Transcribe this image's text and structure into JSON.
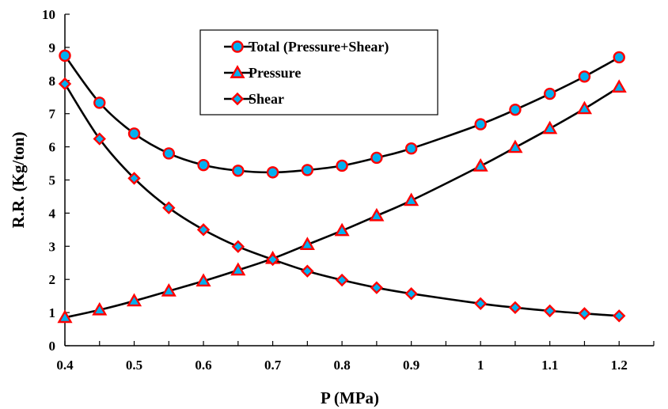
{
  "colors": {
    "line": "#000000",
    "marker_fill": "#00B0F0",
    "marker_edge": "#FF0000",
    "axis": "#000000",
    "background": "#ffffff"
  },
  "chart_data": {
    "type": "line",
    "title": "",
    "xlabel": "P (MPa)",
    "ylabel": "R.R. (Kg/ton)",
    "xlim": [
      0.4,
      1.25
    ],
    "ylim": [
      0,
      10
    ],
    "xticks": [
      "0.4",
      "0.5",
      "0.6",
      "0.7",
      "0.8",
      "0.9",
      "1",
      "1.1",
      "1.2"
    ],
    "yticks": [
      "0",
      "1",
      "2",
      "3",
      "4",
      "5",
      "6",
      "7",
      "8",
      "9",
      "10"
    ],
    "grid": false,
    "legend_position": "top-center",
    "x": [
      0.4,
      0.45,
      0.5,
      0.55,
      0.6,
      0.65,
      0.7,
      0.75,
      0.8,
      0.85,
      0.9,
      1.0,
      1.05,
      1.1,
      1.15,
      1.2
    ],
    "series": [
      {
        "name": "Total (Pressure+Shear)",
        "marker": "circle",
        "values": [
          8.75,
          7.33,
          6.4,
          5.8,
          5.45,
          5.28,
          5.23,
          5.3,
          5.43,
          5.67,
          5.95,
          6.68,
          7.12,
          7.6,
          8.12,
          8.7
        ]
      },
      {
        "name": "Pressure",
        "marker": "triangle",
        "values": [
          0.85,
          1.08,
          1.35,
          1.65,
          1.95,
          2.28,
          2.63,
          3.05,
          3.47,
          3.92,
          4.38,
          5.42,
          5.98,
          6.55,
          7.15,
          7.8
        ]
      },
      {
        "name": "Shear",
        "marker": "diamond",
        "values": [
          7.9,
          6.24,
          5.05,
          4.16,
          3.5,
          2.99,
          2.6,
          2.25,
          1.98,
          1.75,
          1.57,
          1.27,
          1.15,
          1.05,
          0.97,
          0.9
        ]
      }
    ]
  }
}
